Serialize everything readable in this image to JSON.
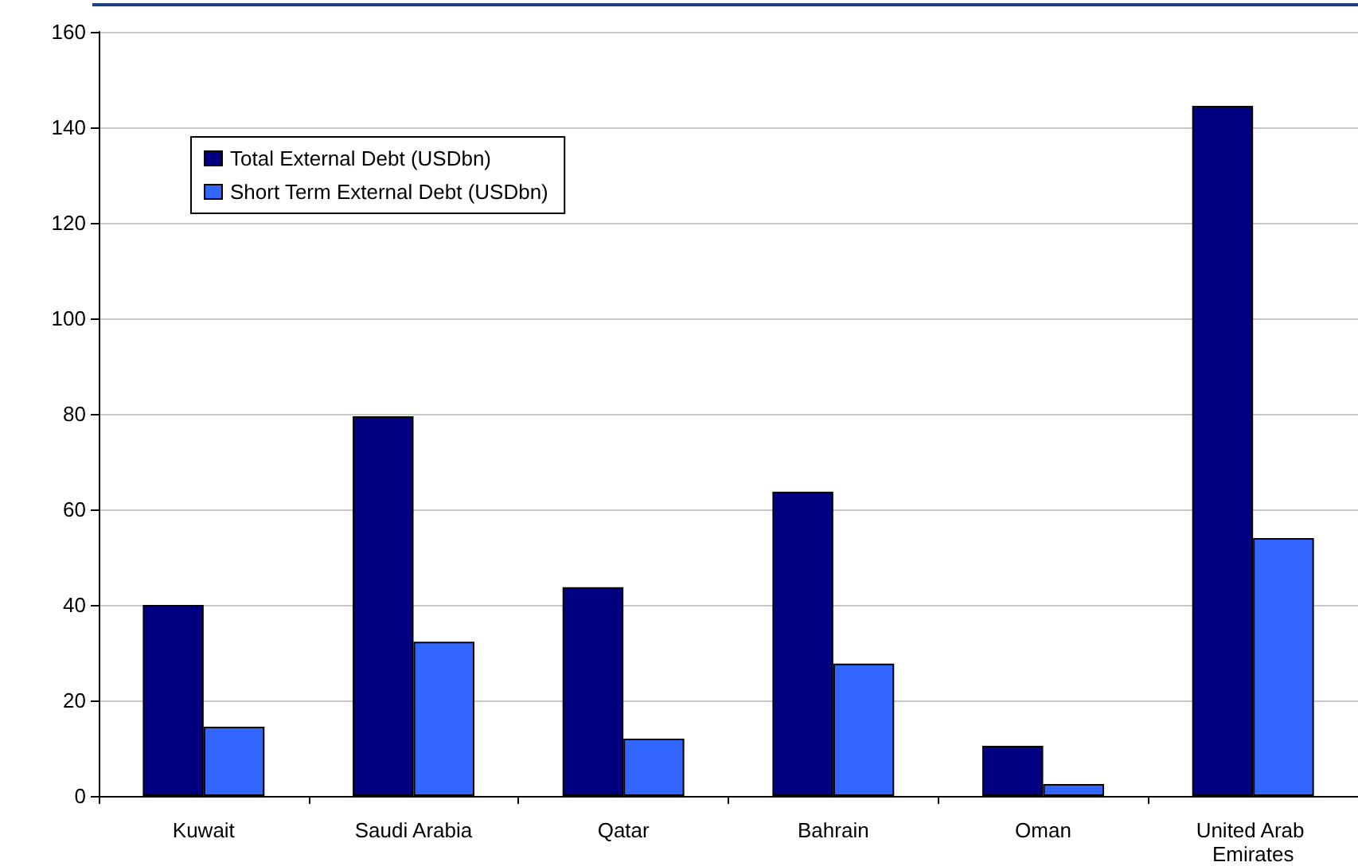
{
  "chart_data": {
    "type": "bar",
    "categories": [
      "Kuwait",
      "Saudi Arabia",
      "Qatar",
      "Bahrain",
      "Oman",
      "United Arab Emirates"
    ],
    "series": [
      {
        "name": "Total External Debt (USDbn)",
        "color": "#000080",
        "values": [
          40,
          79.5,
          43.7,
          63.7,
          10.5,
          144.5
        ]
      },
      {
        "name": "Short Term External Debt (USDbn)",
        "color": "#3366ff",
        "values": [
          14.5,
          32.3,
          12,
          27.7,
          2.5,
          54
        ]
      }
    ],
    "ylim": [
      0,
      160
    ],
    "yticks": [
      0,
      20,
      40,
      60,
      80,
      100,
      120,
      140,
      160
    ],
    "grid": "y",
    "legend": "top left"
  }
}
